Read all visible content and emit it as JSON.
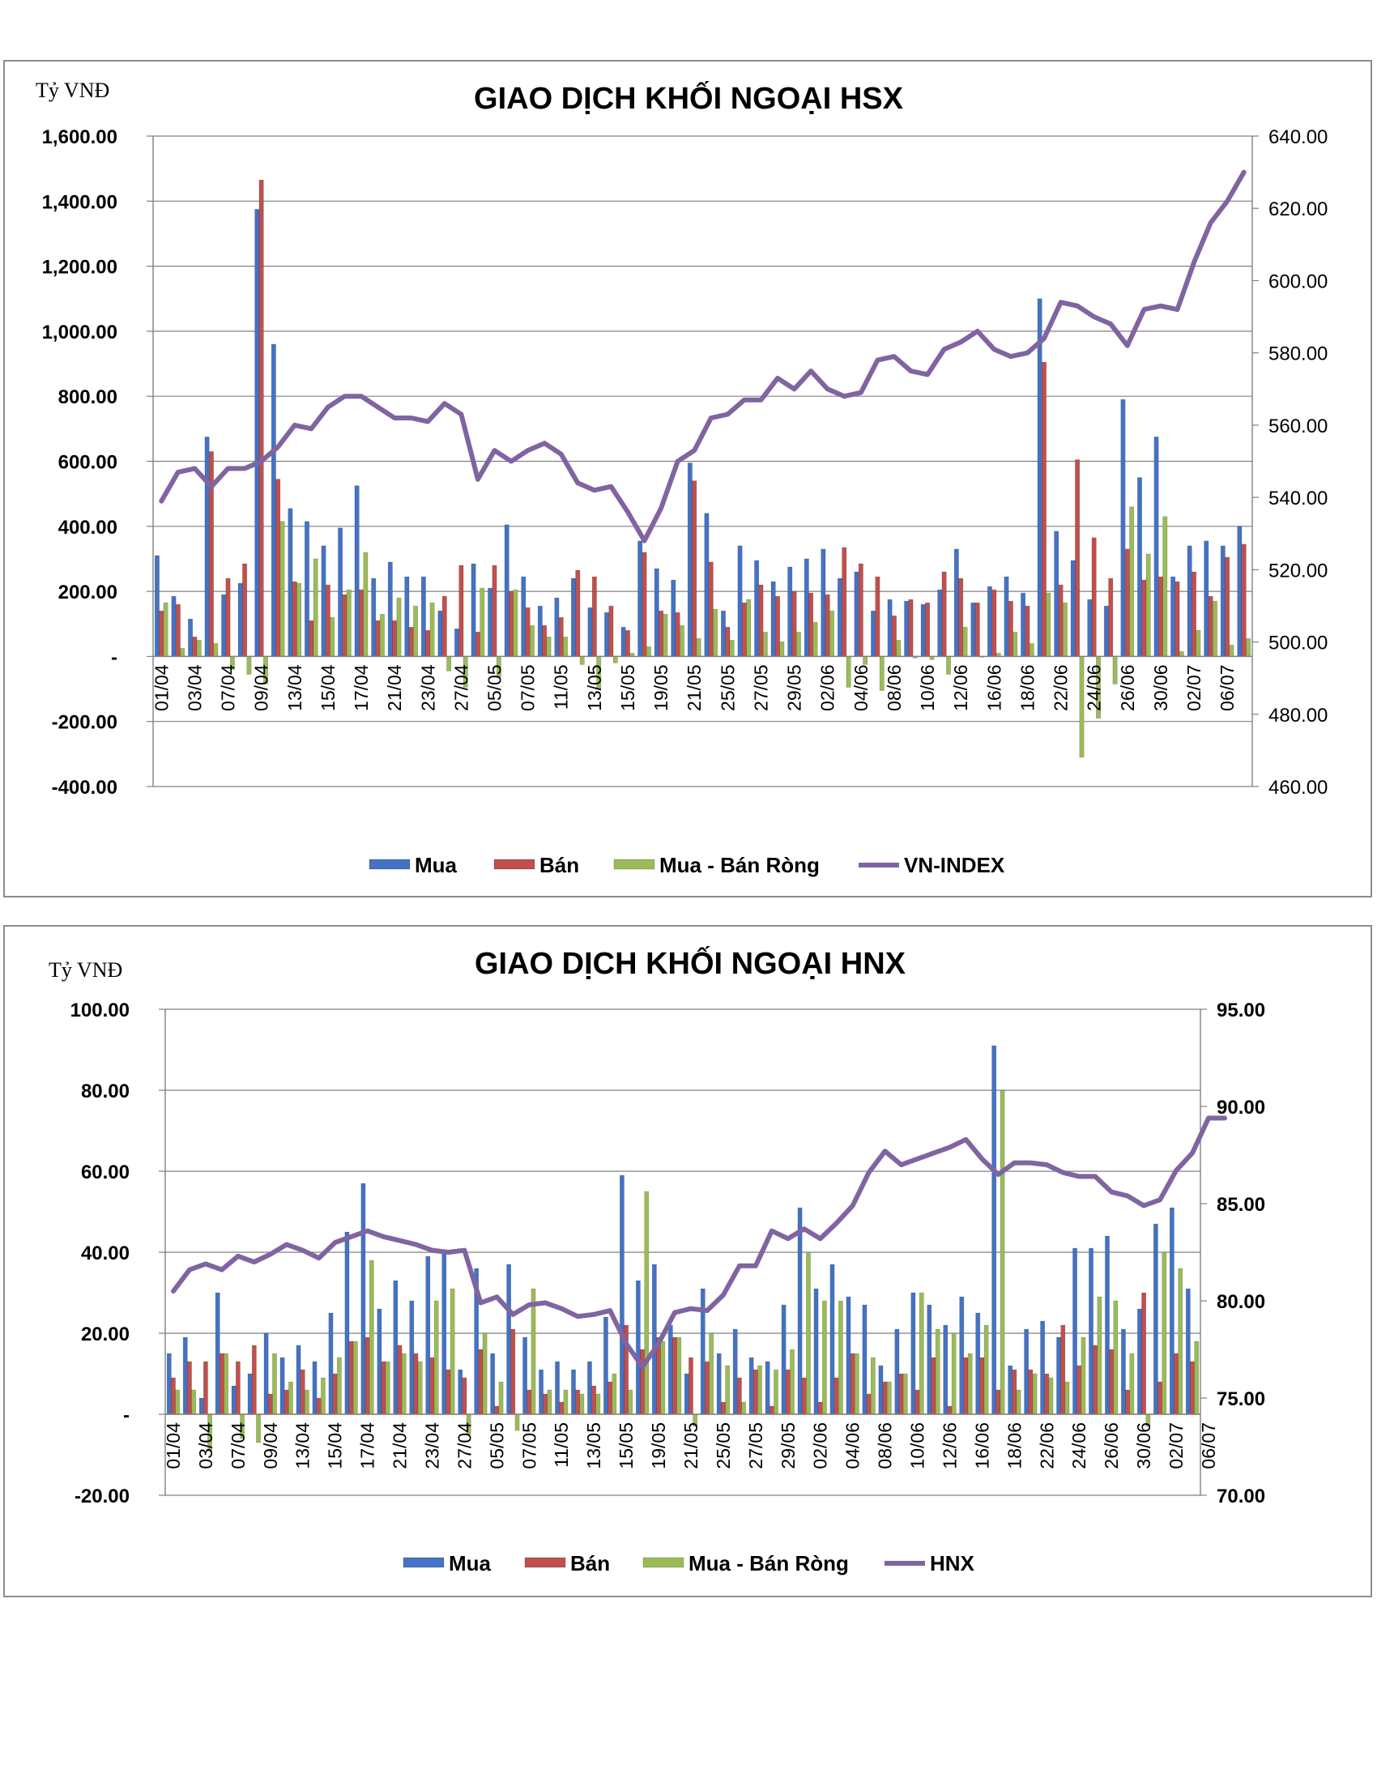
{
  "colors": {
    "mua": "#4472c4",
    "ban": "#c0504d",
    "rong": "#9bbb59",
    "index": "#8064a2",
    "grid": "#808080"
  },
  "chart_data": [
    {
      "type": "bar",
      "title": "GIAO DỊCH KHỐI NGOẠI HSX",
      "unit_label": "Tỷ VNĐ",
      "ylim": [
        -400,
        1600
      ],
      "y_ticks": [
        "1,600.00",
        "1,400.00",
        "1,200.00",
        "1,000.00",
        "800.00",
        "600.00",
        "400.00",
        "200.00",
        "-",
        "-200.00",
        "-400.00"
      ],
      "y2lim": [
        460,
        640
      ],
      "y2_ticks": [
        "640.00",
        "620.00",
        "600.00",
        "580.00",
        "560.00",
        "540.00",
        "520.00",
        "500.00",
        "480.00",
        "460.00"
      ],
      "x_ticks": [
        "01/04",
        "03/04",
        "07/04",
        "09/04",
        "13/04",
        "15/04",
        "17/04",
        "21/04",
        "23/04",
        "27/04",
        "05/05",
        "07/05",
        "11/05",
        "13/05",
        "15/05",
        "19/05",
        "21/05",
        "25/05",
        "27/05",
        "29/05",
        "02/06",
        "04/06",
        "08/06",
        "10/06",
        "12/06",
        "16/06",
        "18/06",
        "22/06",
        "24/06",
        "26/06",
        "30/06",
        "02/07",
        "06/07"
      ],
      "legend": [
        "Mua",
        "Bán",
        "Mua - Bán Ròng",
        "VN-INDEX"
      ],
      "series": [
        {
          "name": "Mua",
          "values": [
            310,
            185,
            115,
            675,
            190,
            225,
            1375,
            960,
            455,
            415,
            340,
            395,
            525,
            240,
            290,
            245,
            245,
            140,
            85,
            285,
            210,
            405,
            245,
            155,
            180,
            240,
            150,
            135,
            90,
            355,
            270,
            235,
            595,
            440,
            140,
            340,
            295,
            230,
            275,
            300,
            330,
            240,
            260,
            140,
            175,
            170,
            160,
            205,
            330,
            165,
            215,
            245,
            195,
            1100,
            385,
            295,
            175,
            155,
            790,
            550,
            675,
            245,
            340,
            355,
            340,
            400
          ]
        },
        {
          "name": "Bán",
          "values": [
            140,
            160,
            60,
            630,
            240,
            285,
            1465,
            545,
            230,
            110,
            220,
            190,
            205,
            110,
            110,
            90,
            80,
            185,
            280,
            75,
            280,
            200,
            150,
            95,
            120,
            265,
            245,
            155,
            80,
            320,
            140,
            135,
            540,
            290,
            90,
            165,
            220,
            185,
            200,
            195,
            190,
            335,
            285,
            245,
            125,
            175,
            165,
            260,
            240,
            165,
            205,
            170,
            155,
            905,
            220,
            605,
            365,
            240,
            330,
            235,
            245,
            230,
            260,
            185,
            305,
            345
          ]
        },
        {
          "name": "Mua - Bán Ròng",
          "values": [
            165,
            25,
            50,
            40,
            -40,
            -55,
            -85,
            415,
            225,
            300,
            120,
            205,
            320,
            130,
            180,
            155,
            165,
            -45,
            -95,
            210,
            -65,
            205,
            95,
            60,
            60,
            -25,
            -100,
            -20,
            10,
            30,
            130,
            95,
            55,
            145,
            50,
            175,
            75,
            45,
            75,
            105,
            140,
            -95,
            -25,
            -105,
            50,
            -5,
            -10,
            -55,
            90,
            0,
            10,
            75,
            40,
            195,
            165,
            -310,
            -190,
            -85,
            460,
            315,
            430,
            15,
            80,
            170,
            35,
            55
          ]
        },
        {
          "name": "VN-INDEX",
          "values": [
            539,
            547,
            548,
            543,
            548,
            548,
            550,
            554,
            560,
            559,
            565,
            568,
            568,
            565,
            562,
            562,
            561,
            566,
            563,
            545,
            553,
            550,
            553,
            555,
            552,
            544,
            542,
            543,
            536,
            528,
            537,
            550,
            553,
            562,
            563,
            567,
            567,
            573,
            570,
            575,
            570,
            568,
            569,
            578,
            579,
            575,
            574,
            581,
            583,
            586,
            581,
            579,
            580,
            584,
            594,
            593,
            590,
            588,
            582,
            592,
            593,
            592,
            605,
            616,
            622,
            630
          ]
        }
      ]
    },
    {
      "type": "bar",
      "title": "GIAO DỊCH KHỐI NGOẠI HNX",
      "unit_label": "Tỷ VNĐ",
      "ylim": [
        -20,
        100
      ],
      "y_ticks": [
        "100.00",
        "80.00",
        "60.00",
        "40.00",
        "20.00",
        "-",
        "-20.00"
      ],
      "y2lim": [
        70,
        95
      ],
      "y2_ticks": [
        "95.00",
        "90.00",
        "85.00",
        "80.00",
        "75.00",
        "70.00"
      ],
      "x_ticks": [
        "01/04",
        "03/04",
        "07/04",
        "09/04",
        "13/04",
        "15/04",
        "17/04",
        "21/04",
        "23/04",
        "27/04",
        "05/05",
        "07/05",
        "11/05",
        "13/05",
        "15/05",
        "19/05",
        "21/05",
        "25/05",
        "27/05",
        "29/05",
        "02/06",
        "04/06",
        "08/06",
        "10/06",
        "12/06",
        "16/06",
        "18/06",
        "22/06",
        "24/06",
        "26/06",
        "30/06",
        "02/07",
        "06/07"
      ],
      "legend": [
        "Mua",
        "Bán",
        "Mua - Bán Ròng",
        "HNX"
      ],
      "series": [
        {
          "name": "Mua",
          "values": [
            15,
            19,
            4,
            30,
            7,
            10,
            20,
            14,
            17,
            13,
            25,
            45,
            57,
            26,
            33,
            28,
            39,
            40,
            11,
            36,
            15,
            37,
            19,
            11,
            13,
            11,
            13,
            24,
            59,
            33,
            37,
            22,
            10,
            31,
            15,
            21,
            14,
            13,
            27,
            51,
            31,
            37,
            29,
            27,
            12,
            21,
            30,
            27,
            22,
            29,
            25,
            91,
            12,
            21,
            23,
            19,
            41,
            41,
            44,
            21,
            26,
            47,
            51,
            31
          ]
        },
        {
          "name": "Bán",
          "values": [
            9,
            13,
            13,
            15,
            13,
            17,
            5,
            6,
            11,
            4,
            10,
            18,
            19,
            13,
            17,
            15,
            14,
            11,
            9,
            16,
            2,
            21,
            6,
            5,
            3,
            6,
            7,
            8,
            22,
            16,
            19,
            19,
            14,
            13,
            3,
            9,
            11,
            2,
            11,
            9,
            3,
            9,
            15,
            5,
            8,
            10,
            6,
            14,
            2,
            14,
            14,
            6,
            11,
            11,
            10,
            22,
            12,
            17,
            16,
            6,
            30,
            8,
            15,
            13
          ]
        },
        {
          "name": "Mua - Bán Ròng",
          "values": [
            6,
            6,
            -9,
            15,
            -6,
            -7,
            15,
            8,
            6,
            9,
            14,
            18,
            38,
            13,
            15,
            13,
            28,
            31,
            -5,
            20,
            8,
            -4,
            31,
            6,
            6,
            5,
            5,
            10,
            6,
            55,
            18,
            19,
            -3,
            20,
            12,
            3,
            12,
            11,
            16,
            40,
            28,
            28,
            15,
            14,
            8,
            10,
            30,
            21,
            20,
            15,
            22,
            80,
            6,
            10,
            9,
            8,
            19,
            29,
            28,
            15,
            -3,
            40,
            36,
            18
          ]
        },
        {
          "name": "HNX",
          "values": [
            80.5,
            81.6,
            81.9,
            81.6,
            82.3,
            82.0,
            82.4,
            82.9,
            82.6,
            82.2,
            83.0,
            83.3,
            83.6,
            83.3,
            83.1,
            82.9,
            82.6,
            82.5,
            82.6,
            79.9,
            80.2,
            79.3,
            79.8,
            79.9,
            79.6,
            79.2,
            79.3,
            79.5,
            77.8,
            76.6,
            77.8,
            79.4,
            79.6,
            79.5,
            80.3,
            81.8,
            81.8,
            83.6,
            83.2,
            83.7,
            83.2,
            84.0,
            84.9,
            86.6,
            87.7,
            87.0,
            87.3,
            87.6,
            87.9,
            88.3,
            87.3,
            86.5,
            87.1,
            87.1,
            87.0,
            86.6,
            86.4,
            86.4,
            85.6,
            85.4,
            84.9,
            85.2,
            86.7,
            87.6,
            89.4,
            89.4
          ]
        }
      ]
    }
  ]
}
